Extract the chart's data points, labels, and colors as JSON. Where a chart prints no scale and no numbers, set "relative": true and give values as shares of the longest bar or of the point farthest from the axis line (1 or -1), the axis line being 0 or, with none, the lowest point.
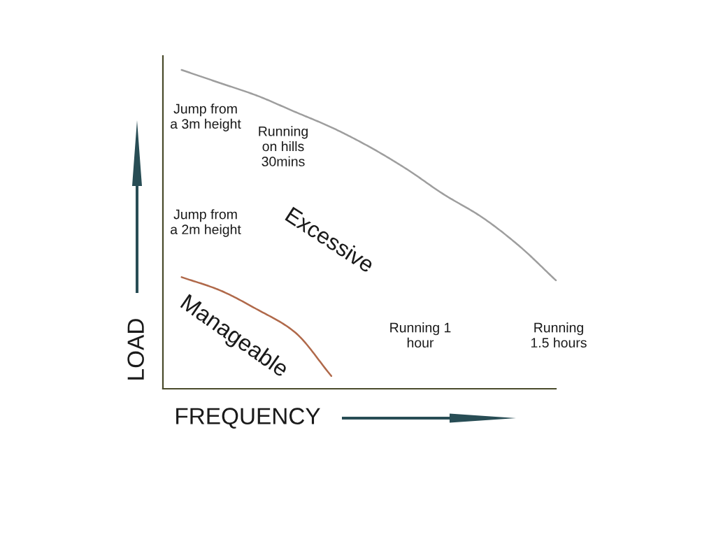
{
  "chart_data": {
    "type": "line",
    "relative": true,
    "xlabel": "FREQUENCY",
    "ylabel": "LOAD",
    "categories": [
      null,
      null,
      null,
      null,
      null,
      null,
      null,
      null,
      null,
      null,
      null
    ],
    "series": [
      {
        "color": "#9e9e9e",
        "values": [
          1.0,
          0.96,
          0.92,
          0.87,
          0.82,
          0.76,
          0.69,
          0.61,
          0.54,
          0.45,
          0.34
        ]
      },
      {
        "color": "#b0694a",
        "values": [
          0.35,
          0.31,
          0.25,
          0.18,
          0.04,
          null,
          null,
          null,
          null,
          null,
          null
        ]
      }
    ],
    "annotations": [
      "Jump from\na 3m height",
      "Running\non hills\n30mins",
      "Jump from\na 2m height",
      "Excessive",
      "Manageable",
      "Running 1\nhour",
      "Running\n1.5 hours"
    ]
  }
}
